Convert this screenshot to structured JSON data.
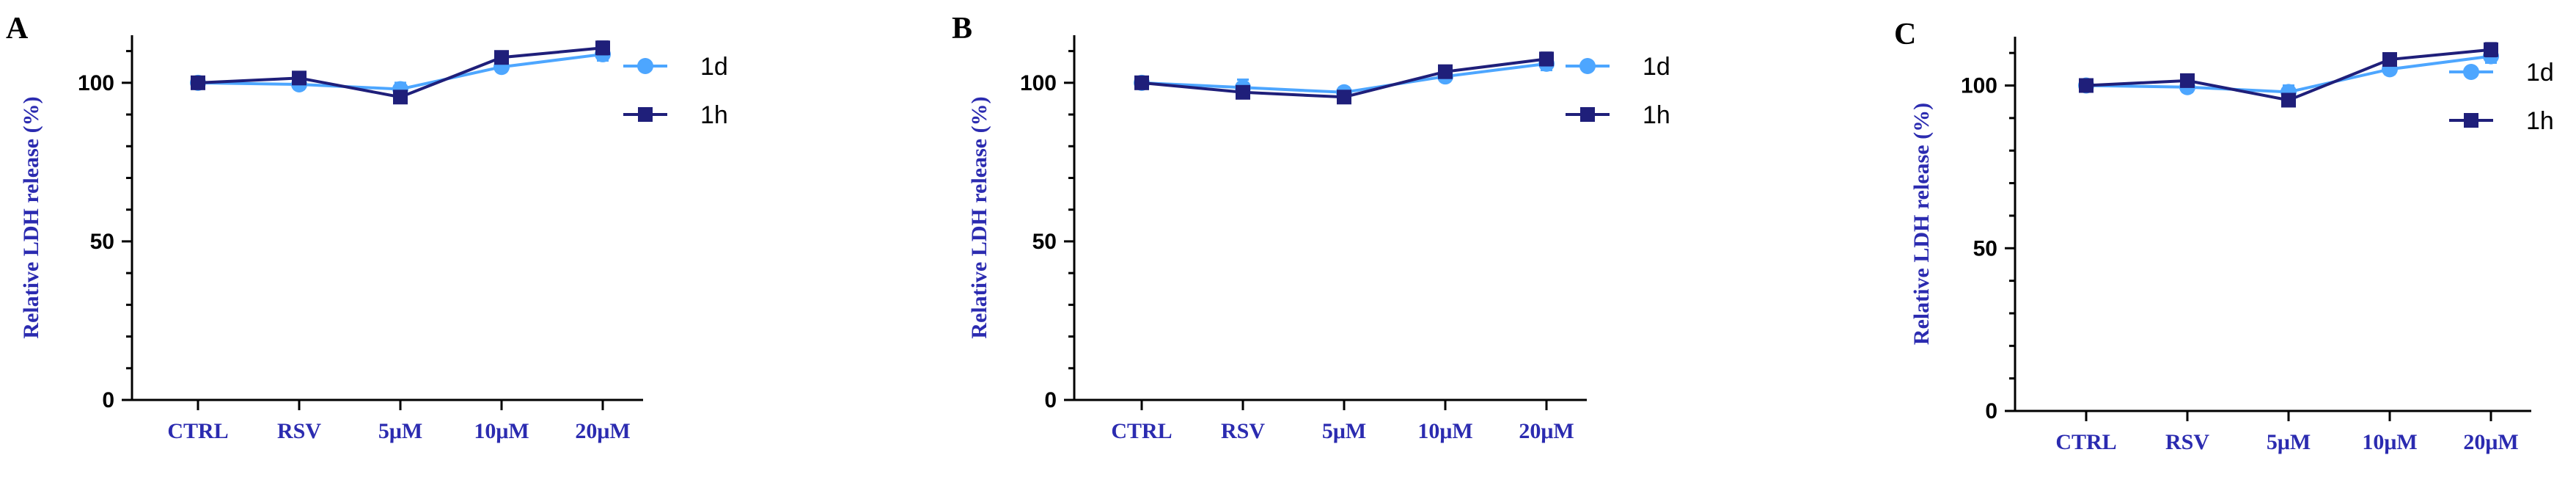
{
  "chart_data": [
    {
      "panel": "A",
      "type": "line",
      "ylabel": "Relative LDH release (%)",
      "xlabel": "",
      "categories": [
        "CTRL",
        "RSV",
        "5μM",
        "10μM",
        "20μM"
      ],
      "ylim": [
        0,
        115
      ],
      "yticks": [
        0,
        50,
        100
      ],
      "grid": false,
      "legend_position": "top-right",
      "series": [
        {
          "name": "1d",
          "color": "#4da6ff",
          "marker": "circle",
          "values": [
            100,
            99.5,
            98,
            105,
            109
          ],
          "errors": [
            1,
            1.5,
            2,
            1.5,
            2
          ]
        },
        {
          "name": "1h",
          "color": "#1f1f7a",
          "marker": "square",
          "values": [
            100,
            101.5,
            95.5,
            108,
            111
          ],
          "errors": [
            1,
            1.5,
            1.5,
            1.5,
            2
          ]
        }
      ]
    },
    {
      "panel": "B",
      "type": "line",
      "ylabel": "Relative LDH release (%)",
      "xlabel": "",
      "categories": [
        "CTRL",
        "RSV",
        "5μM",
        "10μM",
        "20μM"
      ],
      "ylim": [
        0,
        115
      ],
      "yticks": [
        0,
        50,
        100
      ],
      "grid": false,
      "legend_position": "top-right",
      "series": [
        {
          "name": "1d",
          "color": "#4da6ff",
          "marker": "circle",
          "values": [
            100,
            98.5,
            97,
            102,
            106
          ],
          "errors": [
            1,
            2.5,
            1.5,
            1.5,
            2
          ]
        },
        {
          "name": "1h",
          "color": "#1f1f7a",
          "marker": "square",
          "values": [
            100,
            97,
            95.5,
            103.5,
            107.5
          ],
          "errors": [
            1,
            1.5,
            1.5,
            1.5,
            2
          ]
        }
      ]
    },
    {
      "panel": "C",
      "type": "line",
      "ylabel": "Relative LDH release (%)",
      "xlabel": "",
      "categories": [
        "CTRL",
        "RSV",
        "5μM",
        "10μM",
        "20μM"
      ],
      "ylim": [
        0,
        115
      ],
      "yticks": [
        0,
        50,
        100
      ],
      "grid": false,
      "legend_position": "top-right",
      "series": [
        {
          "name": "1d",
          "color": "#4da6ff",
          "marker": "circle",
          "values": [
            100,
            99.5,
            98,
            105,
            109
          ],
          "errors": [
            1,
            1.5,
            2,
            1.5,
            2
          ]
        },
        {
          "name": "1h",
          "color": "#1f1f7a",
          "marker": "square",
          "values": [
            100,
            101.5,
            95.5,
            108,
            111
          ],
          "errors": [
            1,
            1.5,
            1.5,
            1.5,
            2
          ]
        }
      ]
    }
  ]
}
